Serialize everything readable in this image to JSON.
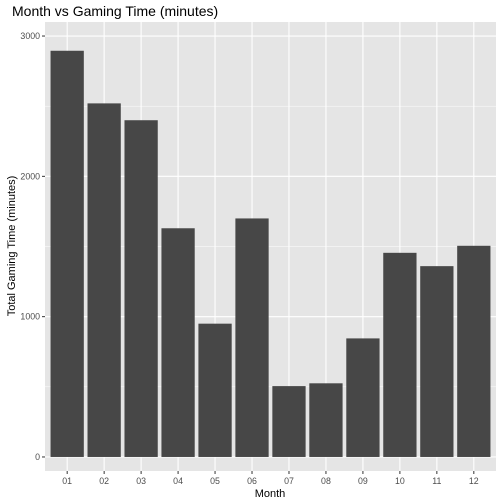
{
  "chart_data": {
    "type": "bar",
    "title": "Month vs Gaming Time (minutes)",
    "xlabel": "Month",
    "ylabel": "Total Gaming Time (minutes)",
    "categories": [
      "01",
      "02",
      "03",
      "04",
      "05",
      "06",
      "07",
      "08",
      "09",
      "10",
      "11",
      "12"
    ],
    "values": [
      2895,
      2520,
      2400,
      1630,
      950,
      1700,
      505,
      525,
      845,
      1455,
      1360,
      1505
    ],
    "ylim": [
      -100,
      3100
    ],
    "yticks": [
      0,
      1000,
      2000,
      3000
    ],
    "ytick_labels": [
      "0",
      "1000",
      "2000",
      "3000"
    ],
    "grid": true,
    "colors": {
      "bar": "#474747",
      "panel_background": "#e5e5e5",
      "gridline": "#ffffff",
      "text": "#000000",
      "tick_text": "#4d4d4d"
    }
  }
}
